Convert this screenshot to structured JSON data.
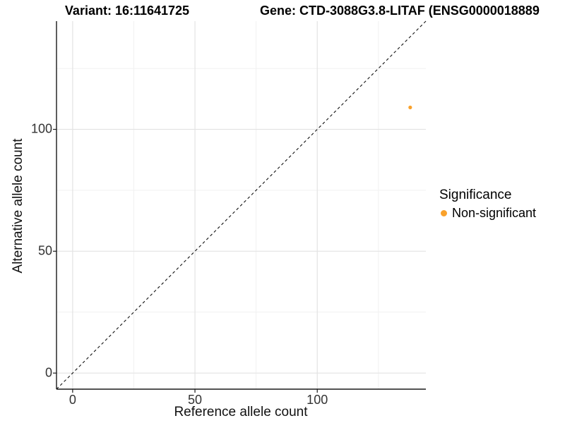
{
  "titles": {
    "variant": "Variant: 16:11641725",
    "gene": "Gene: CTD-3088G3.8-LITAF (ENSG0000018889"
  },
  "axes": {
    "x_label": "Reference allele count",
    "y_label": "Alternative allele count"
  },
  "legend": {
    "title": "Significance",
    "items": [
      {
        "label": "Non-significant",
        "color": "#F9A12B"
      }
    ]
  },
  "chart_data": {
    "type": "scatter",
    "title": "Variant: 16:11641725 | Gene: CTD-3088G3.8-LITAF (ENSG0000018889",
    "xlabel": "Reference allele count",
    "ylabel": "Alternative allele count",
    "xlim": [
      -6.6,
      144.4
    ],
    "ylim": [
      -6.6,
      144.4
    ],
    "x_ticks": [
      0,
      50,
      100
    ],
    "y_ticks": [
      0,
      50,
      100
    ],
    "x_minor_ticks": [
      25,
      75,
      125
    ],
    "y_minor_ticks": [
      25,
      75,
      125
    ],
    "grid": true,
    "legend_position": "right",
    "series": [
      {
        "name": "Non-significant",
        "color": "#F9A12B",
        "points": [
          {
            "x": 138,
            "y": 109
          }
        ]
      }
    ],
    "reference_line": {
      "kind": "identity",
      "slope": 1,
      "intercept": 0,
      "style": "dashed",
      "color": "#111111"
    },
    "colors": {
      "point": "#F9A12B",
      "grid_major": "#e3e3e3",
      "grid_minor": "#f1f1f1",
      "axis_line": "#1a1a1a",
      "tick_text": "#333333",
      "background": "#ffffff"
    }
  }
}
